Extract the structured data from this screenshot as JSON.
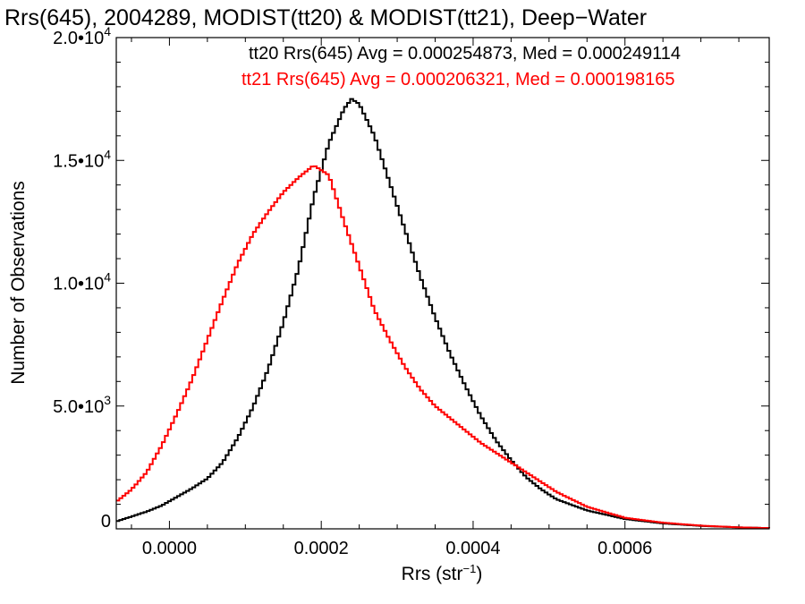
{
  "chart_data": {
    "type": "line",
    "title": "Rrs(645), 2004289, MODIST(tt20) & MODIST(tt21), Deep−Water",
    "xlabel_main": "Rrs (str",
    "xlabel_sup": "−1",
    "xlabel_close": ")",
    "ylabel": "Number of Observations",
    "xlim": [
      -7e-05,
      0.00079
    ],
    "ylim": [
      0,
      20000
    ],
    "grid": false,
    "legend_position": "top-right",
    "x_ticks": [
      {
        "value": 0.0,
        "label": "0.0000"
      },
      {
        "value": 0.0002,
        "label": "0.0002"
      },
      {
        "value": 0.0004,
        "label": "0.0004"
      },
      {
        "value": 0.0006,
        "label": "0.0006"
      }
    ],
    "y_ticks": [
      {
        "value": 0,
        "mantissa": "0",
        "exp": ""
      },
      {
        "value": 5000,
        "mantissa": "5.0•10",
        "exp": "3"
      },
      {
        "value": 10000,
        "mantissa": "1.0•10",
        "exp": "4"
      },
      {
        "value": 15000,
        "mantissa": "1.5•10",
        "exp": "4"
      },
      {
        "value": 20000,
        "mantissa": "2.0•10",
        "exp": "4"
      }
    ],
    "annotations": [
      {
        "text": "tt20 Rrs(645) Avg = 0.000254873, Med = 0.000249114",
        "color": "#000000"
      },
      {
        "text": "tt21 Rrs(645) Avg = 0.000206321, Med = 0.000198165",
        "color": "#ff0000"
      }
    ],
    "series": [
      {
        "color": "#000000",
        "x": [
          -7e-05,
          -5e-05,
          -3e-05,
          -1e-05,
          1e-05,
          3e-05,
          5e-05,
          7e-05,
          9e-05,
          0.00011,
          0.00013,
          0.00015,
          0.00017,
          0.00019,
          0.00021,
          0.00023,
          0.00024,
          0.00025,
          0.00027,
          0.00029,
          0.00031,
          0.00033,
          0.00035,
          0.00037,
          0.00039,
          0.00041,
          0.00043,
          0.00045,
          0.00047,
          0.00049,
          0.00051,
          0.00055,
          0.0006,
          0.00065,
          0.0007,
          0.00075,
          0.00079
        ],
        "y": [
          300,
          500,
          700,
          950,
          1300,
          1650,
          2050,
          2700,
          3700,
          4950,
          6500,
          8400,
          10600,
          13500,
          15700,
          17100,
          17500,
          17300,
          16000,
          14100,
          12200,
          10300,
          8600,
          7100,
          5800,
          4600,
          3600,
          2800,
          2100,
          1600,
          1200,
          750,
          400,
          220,
          120,
          60,
          30
        ]
      },
      {
        "color": "#ff0000",
        "x": [
          -7e-05,
          -5e-05,
          -3e-05,
          -1e-05,
          1e-05,
          3e-05,
          5e-05,
          7e-05,
          9e-05,
          0.00011,
          0.00013,
          0.00015,
          0.00017,
          0.00019,
          0.00021,
          0.00023,
          0.00025,
          0.00027,
          0.00029,
          0.00031,
          0.00033,
          0.00035,
          0.00037,
          0.00039,
          0.00041,
          0.00043,
          0.00045,
          0.00047,
          0.00049,
          0.00051,
          0.00055,
          0.0006,
          0.00065,
          0.0007,
          0.00075,
          0.00079
        ],
        "y": [
          1100,
          1600,
          2300,
          3400,
          4700,
          6100,
          7700,
          9300,
          10800,
          12000,
          12900,
          13700,
          14300,
          14800,
          14400,
          12500,
          10700,
          8900,
          7700,
          6600,
          5700,
          5000,
          4500,
          4000,
          3500,
          3100,
          2700,
          2300,
          1900,
          1500,
          900,
          450,
          250,
          130,
          60,
          30
        ]
      }
    ]
  }
}
